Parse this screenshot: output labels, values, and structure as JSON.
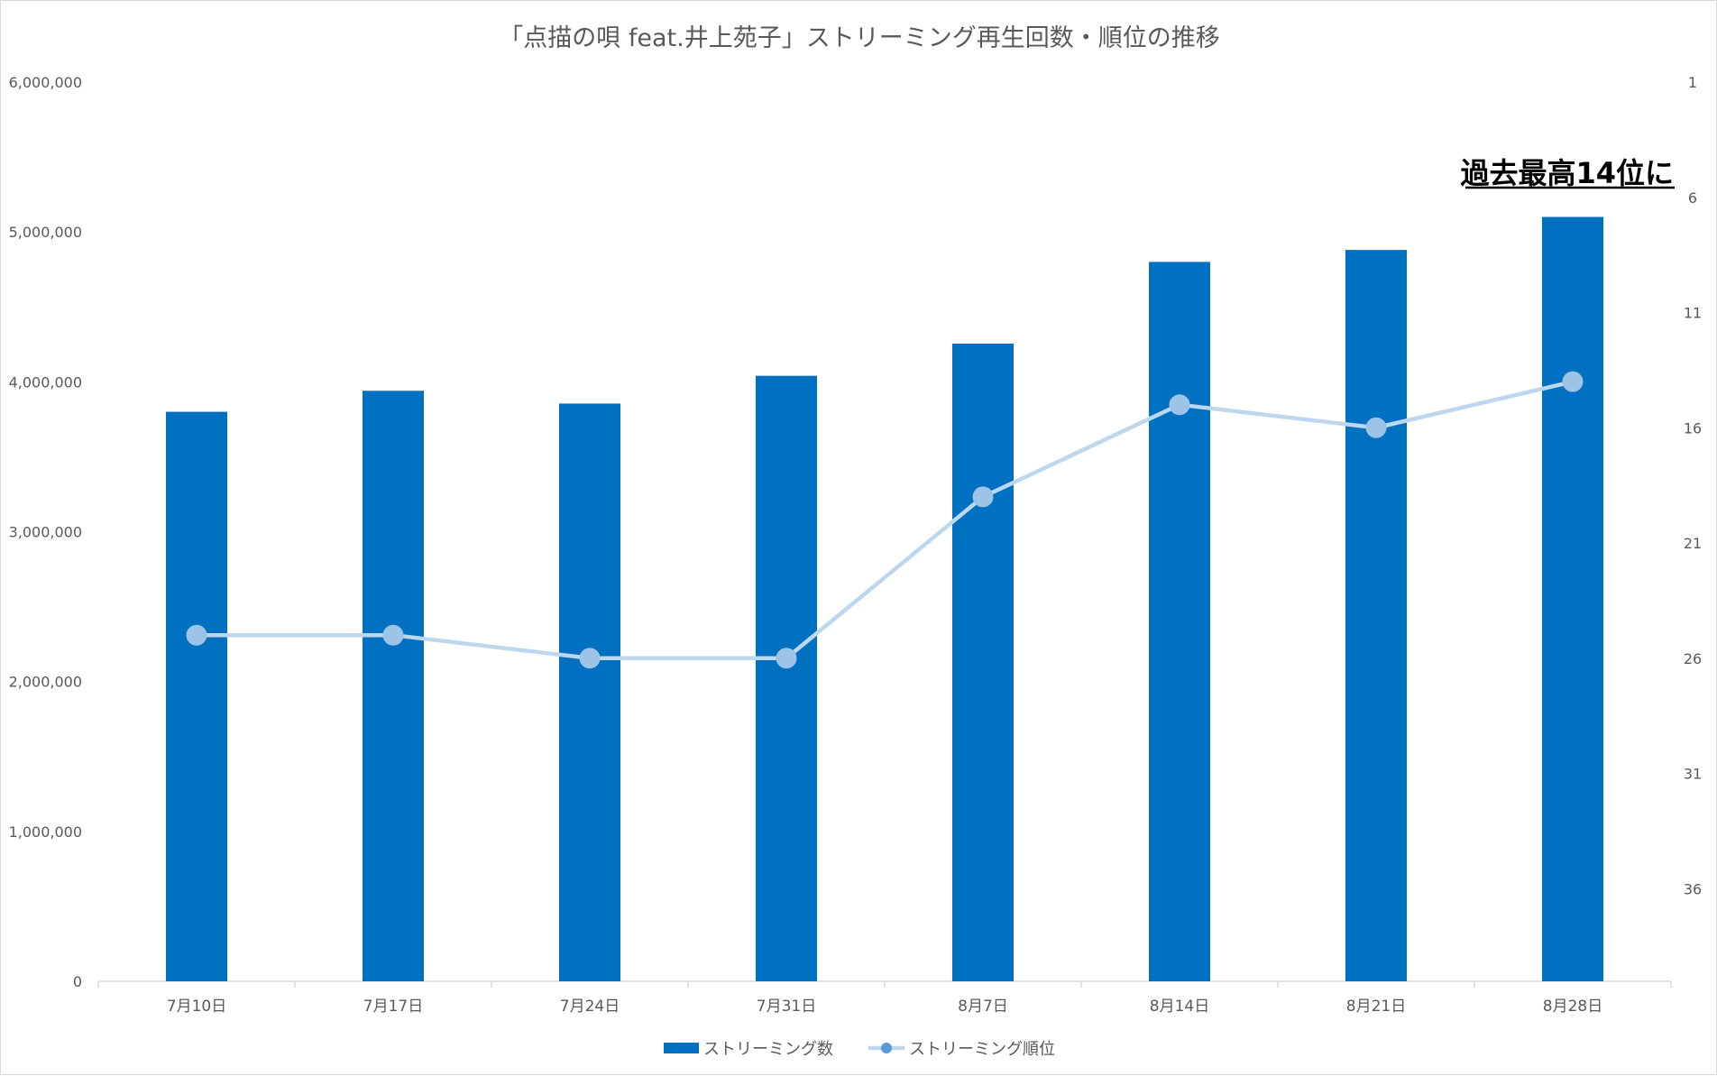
{
  "chart_data": {
    "type": "bar",
    "title": "「点描の唄 feat.井上苑子」ストリーミング再生回数・順位の推移",
    "categories": [
      "7月10日",
      "7月17日",
      "7月24日",
      "7月31日",
      "8月7日",
      "8月14日",
      "8月21日",
      "8月28日"
    ],
    "series": [
      {
        "name": "ストリーミング数",
        "type": "bar",
        "axis": "left",
        "color": "#0070C0",
        "values": [
          3800000,
          3940000,
          3855000,
          4040000,
          4255000,
          4800000,
          4880000,
          5100000
        ]
      },
      {
        "name": "ストリーミング順位",
        "type": "line",
        "axis": "right",
        "color": "#BDD7EE",
        "marker_color": "#9DC3E6",
        "values": [
          25,
          25,
          26,
          26,
          19,
          15,
          16,
          14
        ]
      }
    ],
    "y_left": {
      "min": 0,
      "max": 6000000,
      "ticks": [
        0,
        1000000,
        2000000,
        3000000,
        4000000,
        5000000,
        6000000
      ],
      "tick_labels": [
        "0",
        "1,000,000",
        "2,000,000",
        "3,000,000",
        "4,000,000",
        "5,000,000",
        "6,000,000"
      ]
    },
    "y_right": {
      "min": 1,
      "max": 40,
      "reversed": true,
      "ticks": [
        1,
        6,
        11,
        16,
        21,
        26,
        31,
        36
      ],
      "tick_labels": [
        "1",
        "6",
        "11",
        "16",
        "21",
        "26",
        "31",
        "36"
      ]
    },
    "annotation": "過去最高14位に",
    "legend": {
      "placement": "bottom",
      "entries": [
        "ストリーミング数",
        "ストリーミング順位"
      ]
    },
    "grid": false
  }
}
